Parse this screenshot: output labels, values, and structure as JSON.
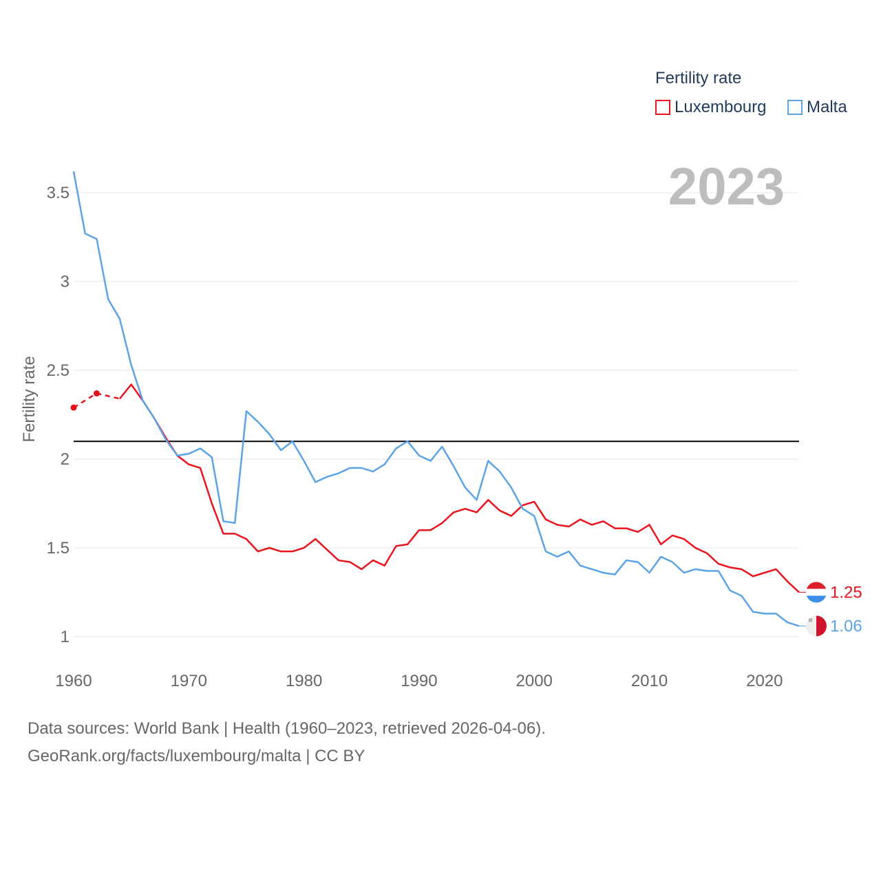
{
  "legend": {
    "title": "Fertility rate",
    "items": [
      {
        "label": "Luxembourg",
        "color": "#e8131b"
      },
      {
        "label": "Malta",
        "color": "#5aa3e6"
      }
    ]
  },
  "year_display": "2023",
  "footer": {
    "line1": "Data sources: World Bank | Health (1960–2023, retrieved 2026-04-06).",
    "line2": "GeoRank.org/facts/luxembourg/malta | CC BY"
  },
  "chart_data": {
    "type": "line",
    "title": "Fertility rate",
    "xlabel": "",
    "ylabel": "Fertility rate",
    "xlim": [
      1960,
      2023
    ],
    "ylim": [
      0.85,
      3.7
    ],
    "xticks": [
      "1960",
      "1970",
      "1980",
      "1990",
      "2000",
      "2010",
      "2020"
    ],
    "yticks": [
      "1",
      "1.5",
      "2",
      "2.5",
      "3",
      "3.5"
    ],
    "reference_line": 2.1,
    "grid": true,
    "legend_position": "top-right",
    "series": [
      {
        "name": "Luxembourg",
        "color": "#e8131b",
        "x": [
          1960,
          1962,
          1964,
          1965,
          1966,
          1967,
          1968,
          1969,
          1970,
          1971,
          1972,
          1973,
          1974,
          1975,
          1976,
          1977,
          1978,
          1979,
          1980,
          1981,
          1982,
          1983,
          1984,
          1985,
          1986,
          1987,
          1988,
          1989,
          1990,
          1991,
          1992,
          1993,
          1994,
          1995,
          1996,
          1997,
          1998,
          1999,
          2000,
          2001,
          2002,
          2003,
          2004,
          2005,
          2006,
          2007,
          2008,
          2009,
          2010,
          2011,
          2012,
          2013,
          2014,
          2015,
          2016,
          2017,
          2018,
          2019,
          2020,
          2021,
          2022,
          2023
        ],
        "values": [
          2.29,
          2.37,
          2.34,
          2.42,
          2.33,
          2.23,
          2.12,
          2.02,
          1.97,
          1.95,
          1.75,
          1.58,
          1.58,
          1.55,
          1.48,
          1.5,
          1.48,
          1.48,
          1.5,
          1.55,
          1.49,
          1.43,
          1.42,
          1.38,
          1.43,
          1.4,
          1.51,
          1.52,
          1.6,
          1.6,
          1.64,
          1.7,
          1.72,
          1.7,
          1.77,
          1.71,
          1.68,
          1.74,
          1.76,
          1.66,
          1.63,
          1.62,
          1.66,
          1.63,
          1.65,
          1.61,
          1.61,
          1.59,
          1.63,
          1.52,
          1.57,
          1.55,
          1.5,
          1.47,
          1.41,
          1.39,
          1.38,
          1.34,
          1.36,
          1.38,
          1.31,
          1.25
        ],
        "dashed_until": 1964,
        "end_value_label": "1.25"
      },
      {
        "name": "Malta",
        "color": "#5aa3e6",
        "x": [
          1960,
          1961,
          1962,
          1963,
          1964,
          1965,
          1966,
          1967,
          1968,
          1969,
          1970,
          1971,
          1972,
          1973,
          1974,
          1975,
          1976,
          1977,
          1978,
          1979,
          1980,
          1981,
          1982,
          1983,
          1984,
          1985,
          1986,
          1987,
          1988,
          1989,
          1990,
          1991,
          1992,
          1993,
          1994,
          1995,
          1996,
          1997,
          1998,
          1999,
          2000,
          2001,
          2002,
          2003,
          2004,
          2005,
          2006,
          2007,
          2008,
          2009,
          2010,
          2011,
          2012,
          2013,
          2014,
          2015,
          2016,
          2017,
          2018,
          2019,
          2020,
          2021,
          2022,
          2023
        ],
        "values": [
          3.62,
          3.27,
          3.24,
          2.9,
          2.79,
          2.53,
          2.33,
          2.23,
          2.11,
          2.02,
          2.03,
          2.06,
          2.01,
          1.65,
          1.64,
          2.27,
          2.21,
          2.14,
          2.05,
          2.1,
          1.99,
          1.87,
          1.9,
          1.92,
          1.95,
          1.95,
          1.93,
          1.97,
          2.06,
          2.1,
          2.02,
          1.99,
          2.07,
          1.96,
          1.84,
          1.77,
          1.99,
          1.93,
          1.84,
          1.72,
          1.68,
          1.48,
          1.45,
          1.48,
          1.4,
          1.38,
          1.36,
          1.35,
          1.43,
          1.42,
          1.36,
          1.45,
          1.42,
          1.36,
          1.38,
          1.37,
          1.37,
          1.26,
          1.23,
          1.14,
          1.13,
          1.13,
          1.08,
          1.06
        ],
        "end_value_label": "1.06"
      }
    ]
  }
}
